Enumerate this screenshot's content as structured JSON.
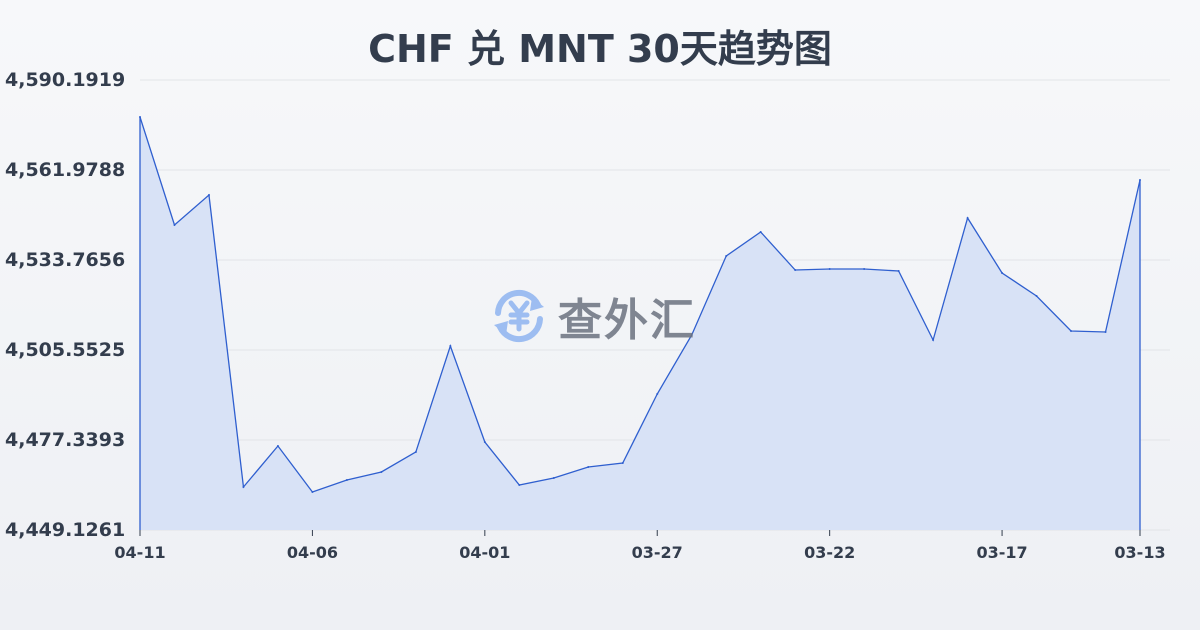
{
  "chart_data": {
    "type": "area",
    "title": "CHF 兑 MNT 30天趋势图",
    "xlabel": "",
    "ylabel": "",
    "x": [
      "04-11",
      "04-10",
      "04-09",
      "04-08",
      "04-07",
      "04-06",
      "04-05",
      "04-04",
      "04-03",
      "04-02",
      "04-01",
      "03-31",
      "03-30",
      "03-29",
      "03-28",
      "03-27",
      "03-26",
      "03-25",
      "03-24",
      "03-23",
      "03-22",
      "03-21",
      "03-20",
      "03-19",
      "03-18",
      "03-17",
      "03-16",
      "03-15",
      "03-14",
      "03-13"
    ],
    "values": [
      4578.6,
      4544.74,
      4554.14,
      4462.61,
      4475.46,
      4461.04,
      4464.8,
      4467.31,
      4473.58,
      4506.81,
      4476.71,
      4463.23,
      4465.43,
      4468.87,
      4470.13,
      4491.76,
      4510.26,
      4535.02,
      4542.54,
      4530.63,
      4530.94,
      4530.94,
      4530.32,
      4508.69,
      4546.93,
      4529.69,
      4522.48,
      4511.51,
      4511.2,
      4558.85
    ],
    "ylim": [
      4449.1261,
      4590.1919
    ],
    "yticks": [
      "4,590.1919",
      "4,561.9788",
      "4,533.7656",
      "4,505.5525",
      "4,477.3393",
      "4,449.1261"
    ],
    "xticks": [
      "04-11",
      "04-06",
      "04-01",
      "03-27",
      "03-22",
      "03-17",
      "03-13"
    ],
    "grid": true,
    "colors": {
      "line": "#2f5fcf",
      "fill": "#d6e0f5",
      "grid": "#e2e4e8",
      "text": "#333d4d"
    }
  },
  "watermark": {
    "text": "查外汇",
    "icon": "yen-exchange-icon",
    "color": "#8fb4f0"
  }
}
